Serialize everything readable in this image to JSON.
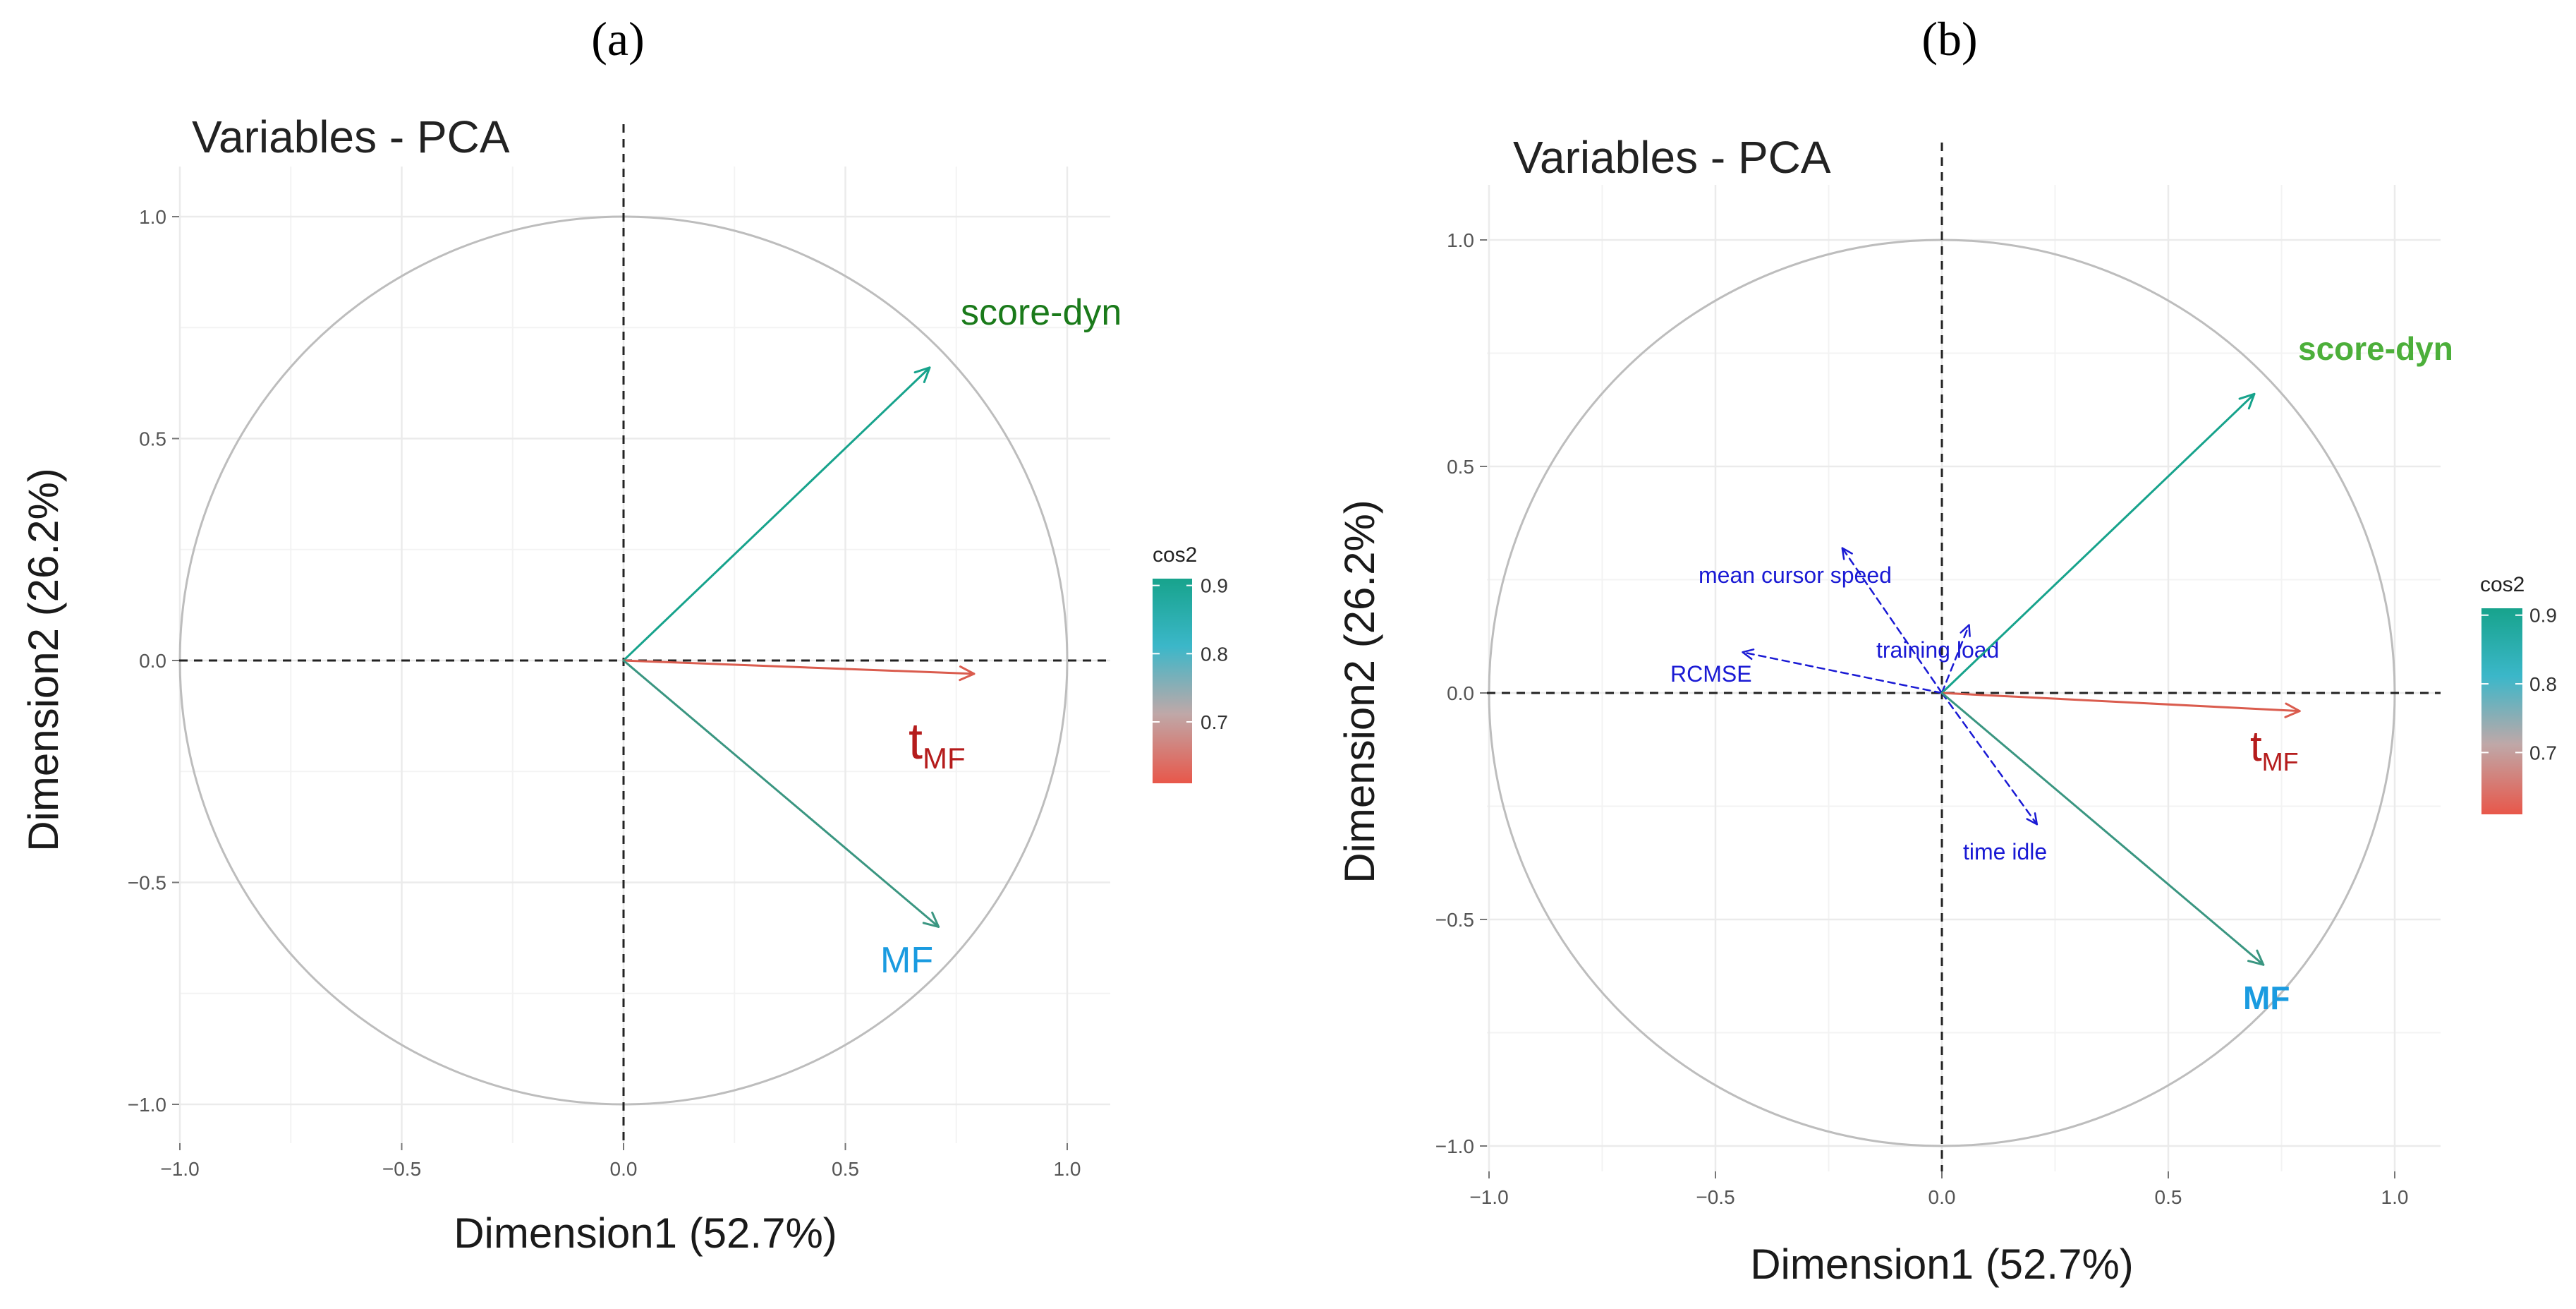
{
  "colors": {
    "score_dyn": "#1a7a1a",
    "score_dyn_b": "#4caf3a",
    "mf": "#1a9be0",
    "t_mf": "#b51c1c",
    "supplementary": "#1a1ad4",
    "arrow_high": "#17a38c",
    "arrow_low": "#e8574a",
    "circle": "#bdbdbd",
    "grid": "#ebebeb"
  },
  "legend": {
    "title": "cos2",
    "ticks": [
      "0.9",
      "0.8",
      "0.7"
    ],
    "tick_values": [
      0.9,
      0.8,
      0.7
    ],
    "range": [
      0.61,
      0.91
    ],
    "stops": [
      "#17a38c",
      "#3bb7c9",
      "#bfa8a8",
      "#e8574a"
    ]
  },
  "chart_data": [
    {
      "type": "scatter",
      "panel_label": "(a)",
      "title": "Variables - PCA",
      "xlabel": "Dimension1 (52.7%)",
      "ylabel": "Dimension2 (26.2%)",
      "xlim": [
        -1.1,
        1.1
      ],
      "ylim": [
        -1.1,
        1.1
      ],
      "xticks": [
        -1.0,
        -0.5,
        0.0,
        0.5,
        1.0
      ],
      "yticks": [
        -1.0,
        -0.5,
        0.0,
        0.5,
        1.0
      ],
      "xtick_labels": [
        "−1.0",
        "−0.5",
        "0.0",
        "0.5",
        "1.0"
      ],
      "ytick_labels": [
        "−1.0",
        "−0.5",
        "0.0",
        "0.5",
        "1.0"
      ],
      "grid": true,
      "legend_position": "right",
      "series": [
        {
          "name": "score-dyn",
          "x": 0.69,
          "y": 0.66,
          "cos2": 0.91
        },
        {
          "name": "t",
          "subscript": "MF",
          "x": 0.79,
          "y": -0.03,
          "cos2": 0.63
        },
        {
          "name": "MF",
          "x": 0.71,
          "y": -0.6,
          "cos2": 0.86
        }
      ],
      "supplementary": []
    },
    {
      "type": "scatter",
      "panel_label": "(b)",
      "title": "Variables - PCA",
      "xlabel": "Dimension1 (52.7%)",
      "ylabel": "Dimension2 (26.2%)",
      "xlim": [
        -1.1,
        1.1
      ],
      "ylim": [
        -1.1,
        1.1
      ],
      "xticks": [
        -1.0,
        -0.5,
        0.0,
        0.5,
        1.0
      ],
      "yticks": [
        -1.0,
        -0.5,
        0.0,
        0.5,
        1.0
      ],
      "xtick_labels": [
        "−1.0",
        "−0.5",
        "0.0",
        "0.5",
        "1.0"
      ],
      "ytick_labels": [
        "−1.0",
        "−0.5",
        "0.0",
        "0.5",
        "1.0"
      ],
      "grid": true,
      "legend_position": "right",
      "series": [
        {
          "name": "score-dyn",
          "x": 0.69,
          "y": 0.66,
          "cos2": 0.91
        },
        {
          "name": "t",
          "subscript": "MF",
          "x": 0.79,
          "y": -0.04,
          "cos2": 0.63
        },
        {
          "name": "MF",
          "x": 0.71,
          "y": -0.6,
          "cos2": 0.86
        }
      ],
      "supplementary": [
        {
          "name": "mean cursor speed",
          "x": -0.22,
          "y": 0.32
        },
        {
          "name": "RCMSE",
          "x": -0.44,
          "y": 0.09
        },
        {
          "name": "training load",
          "x": 0.06,
          "y": 0.15
        },
        {
          "name": "time idle",
          "x": 0.21,
          "y": -0.29
        }
      ]
    }
  ]
}
